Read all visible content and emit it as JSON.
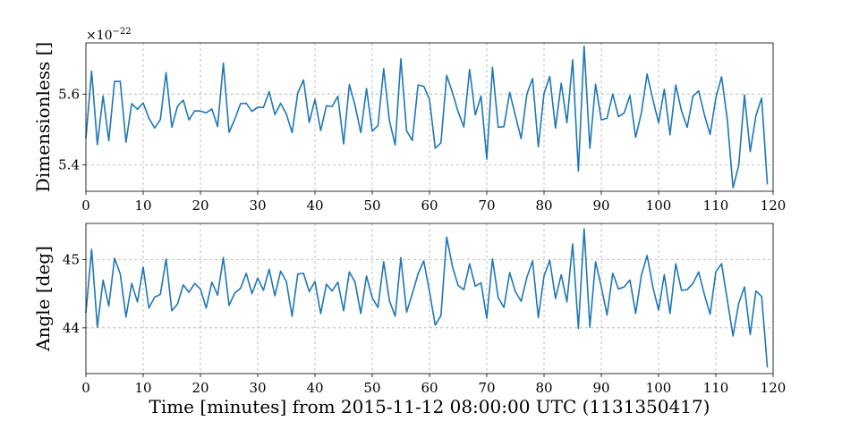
{
  "figure": {
    "xlabel": "Time [minutes] from 2015-11-12 08:00:00 UTC (1131350417)"
  },
  "chart_data": [
    {
      "type": "line",
      "ylabel": "Dimensionless []",
      "y_exponent_label": "×10",
      "y_exponent_power": "−22",
      "xlim": [
        0,
        120
      ],
      "ylim": [
        5.325,
        5.745
      ],
      "x_ticks": [
        0,
        10,
        20,
        30,
        40,
        50,
        60,
        70,
        80,
        90,
        100,
        110,
        120
      ],
      "y_ticks": [
        5.4,
        5.6
      ],
      "y_tick_labels": [
        "5.4",
        "5.6"
      ],
      "grid": true,
      "series": [
        {
          "color": "#1f77b4",
          "x": [
            0,
            1,
            2,
            3,
            4,
            5,
            6,
            7,
            8,
            9,
            10,
            11,
            12,
            13,
            14,
            15,
            16,
            17,
            18,
            19,
            20,
            21,
            22,
            23,
            24,
            25,
            26,
            27,
            28,
            29,
            30,
            31,
            32,
            33,
            34,
            35,
            36,
            37,
            38,
            39,
            40,
            41,
            42,
            43,
            44,
            45,
            46,
            47,
            48,
            49,
            50,
            51,
            52,
            53,
            54,
            55,
            56,
            57,
            58,
            59,
            60,
            61,
            62,
            63,
            64,
            65,
            66,
            67,
            68,
            69,
            70,
            71,
            72,
            73,
            74,
            75,
            76,
            77,
            78,
            79,
            80,
            81,
            82,
            83,
            84,
            85,
            86,
            87,
            88,
            89,
            90,
            91,
            92,
            93,
            94,
            95,
            96,
            97,
            98,
            99,
            100,
            101,
            102,
            103,
            104,
            105,
            106,
            107,
            108,
            109,
            110,
            111,
            112,
            113,
            114,
            115,
            116,
            117,
            118,
            119
          ],
          "values": [
            5.475,
            5.665,
            5.457,
            5.595,
            5.468,
            5.636,
            5.636,
            5.464,
            5.573,
            5.557,
            5.575,
            5.532,
            5.504,
            5.528,
            5.661,
            5.506,
            5.566,
            5.583,
            5.527,
            5.553,
            5.552,
            5.547,
            5.558,
            5.508,
            5.688,
            5.492,
            5.529,
            5.573,
            5.574,
            5.551,
            5.563,
            5.562,
            5.607,
            5.542,
            5.574,
            5.544,
            5.491,
            5.603,
            5.64,
            5.52,
            5.585,
            5.497,
            5.567,
            5.565,
            5.594,
            5.459,
            5.627,
            5.568,
            5.491,
            5.616,
            5.495,
            5.511,
            5.672,
            5.525,
            5.456,
            5.7,
            5.496,
            5.469,
            5.626,
            5.622,
            5.585,
            5.447,
            5.462,
            5.653,
            5.605,
            5.55,
            5.507,
            5.67,
            5.541,
            5.595,
            5.416,
            5.676,
            5.506,
            5.508,
            5.605,
            5.539,
            5.474,
            5.6,
            5.644,
            5.451,
            5.602,
            5.65,
            5.504,
            5.631,
            5.519,
            5.697,
            5.382,
            5.736,
            5.447,
            5.628,
            5.527,
            5.532,
            5.6,
            5.536,
            5.547,
            5.596,
            5.478,
            5.547,
            5.657,
            5.585,
            5.519,
            5.614,
            5.485,
            5.626,
            5.553,
            5.506,
            5.594,
            5.609,
            5.542,
            5.486,
            5.589,
            5.649,
            5.529,
            5.335,
            5.398,
            5.598,
            5.437,
            5.539,
            5.589,
            5.344
          ]
        }
      ]
    },
    {
      "type": "line",
      "ylabel": "Angle [deg]",
      "xlim": [
        0,
        120
      ],
      "ylim": [
        43.33,
        45.53
      ],
      "x_ticks": [
        0,
        10,
        20,
        30,
        40,
        50,
        60,
        70,
        80,
        90,
        100,
        110,
        120
      ],
      "y_ticks": [
        44,
        45
      ],
      "y_tick_labels": [
        "44",
        "45"
      ],
      "grid": true,
      "series": [
        {
          "color": "#1f77b4",
          "x": [
            0,
            1,
            2,
            3,
            4,
            5,
            6,
            7,
            8,
            9,
            10,
            11,
            12,
            13,
            14,
            15,
            16,
            17,
            18,
            19,
            20,
            21,
            22,
            23,
            24,
            25,
            26,
            27,
            28,
            29,
            30,
            31,
            32,
            33,
            34,
            35,
            36,
            37,
            38,
            39,
            40,
            41,
            42,
            43,
            44,
            45,
            46,
            47,
            48,
            49,
            50,
            51,
            52,
            53,
            54,
            55,
            56,
            57,
            58,
            59,
            60,
            61,
            62,
            63,
            64,
            65,
            66,
            67,
            68,
            69,
            70,
            71,
            72,
            73,
            74,
            75,
            76,
            77,
            78,
            79,
            80,
            81,
            82,
            83,
            84,
            85,
            86,
            87,
            88,
            89,
            90,
            91,
            92,
            93,
            94,
            95,
            96,
            97,
            98,
            99,
            100,
            101,
            102,
            103,
            104,
            105,
            106,
            107,
            108,
            109,
            110,
            111,
            112,
            113,
            114,
            115,
            116,
            117,
            118,
            119
          ],
          "values": [
            44.22,
            45.15,
            44.01,
            44.7,
            44.32,
            45.02,
            44.79,
            44.16,
            44.65,
            44.38,
            44.89,
            44.29,
            44.45,
            44.49,
            45.01,
            44.25,
            44.35,
            44.63,
            44.52,
            44.65,
            44.57,
            44.29,
            44.67,
            44.48,
            45.03,
            44.33,
            44.51,
            44.58,
            44.8,
            44.5,
            44.73,
            44.55,
            44.86,
            44.47,
            44.83,
            44.68,
            44.17,
            44.79,
            44.8,
            44.53,
            44.68,
            44.21,
            44.64,
            44.54,
            44.67,
            44.25,
            44.82,
            44.67,
            44.21,
            44.76,
            44.44,
            44.3,
            44.97,
            44.4,
            44.17,
            45.03,
            44.23,
            44.5,
            44.79,
            44.98,
            44.53,
            44.04,
            44.18,
            45.33,
            44.9,
            44.62,
            44.56,
            44.94,
            44.61,
            44.66,
            44.14,
            45.01,
            44.44,
            44.3,
            44.81,
            44.53,
            44.39,
            44.74,
            44.98,
            44.15,
            44.76,
            44.99,
            44.43,
            44.78,
            44.38,
            45.23,
            43.99,
            45.45,
            44.01,
            44.97,
            44.6,
            44.19,
            44.8,
            44.57,
            44.6,
            44.7,
            44.21,
            44.77,
            45.06,
            44.6,
            44.26,
            44.78,
            44.21,
            44.94,
            44.55,
            44.56,
            44.65,
            44.82,
            44.49,
            44.2,
            44.82,
            44.94,
            44.41,
            43.88,
            44.36,
            44.6,
            43.9,
            44.54,
            44.46,
            43.42
          ]
        }
      ]
    }
  ]
}
